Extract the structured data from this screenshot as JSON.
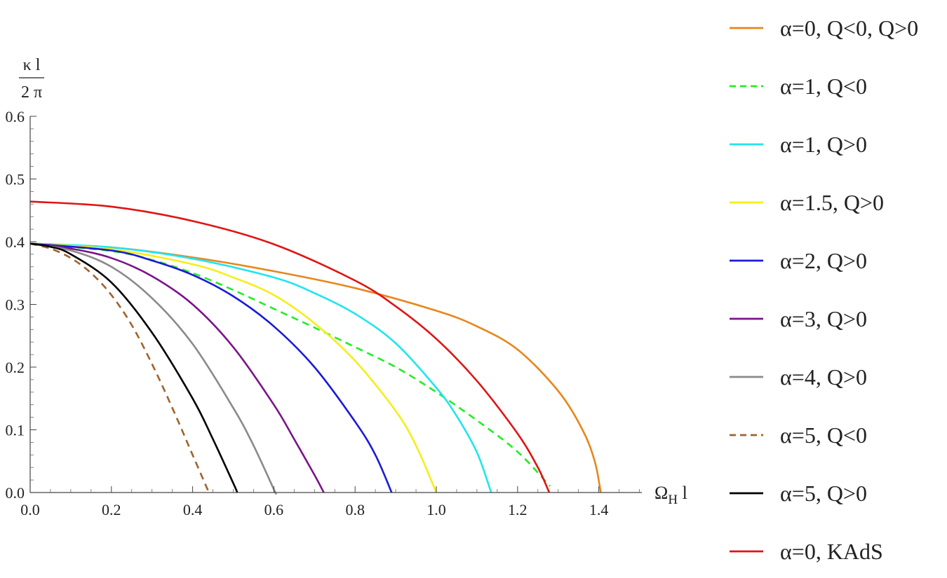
{
  "chart_data": {
    "type": "line",
    "title": "",
    "ylabel": {
      "numerator": "κ l",
      "denominator": "2 π"
    },
    "xlabel": {
      "main": "Ω",
      "subscript": "H",
      "suffix": " l"
    },
    "xlim": [
      0,
      1.5
    ],
    "ylim": [
      0,
      0.6
    ],
    "xticks": [
      "0.0",
      "0.2",
      "0.4",
      "0.6",
      "0.8",
      "1.0",
      "1.2",
      "1.4"
    ],
    "yticks": [
      "0.0",
      "0.1",
      "0.2",
      "0.3",
      "0.4",
      "0.5",
      "0.6"
    ],
    "grid": false,
    "legend_position": "right",
    "series": [
      {
        "name": "α=0, Q<0, Q>0",
        "color": "#E8861A",
        "dashed": false,
        "points": [
          [
            0,
            0.397
          ],
          [
            0.2,
            0.391
          ],
          [
            0.4,
            0.375
          ],
          [
            0.6,
            0.353
          ],
          [
            0.8,
            0.326
          ],
          [
            1.0,
            0.29
          ],
          [
            1.1,
            0.265
          ],
          [
            1.2,
            0.228
          ],
          [
            1.3,
            0.162
          ],
          [
            1.36,
            0.1
          ],
          [
            1.39,
            0.05
          ],
          [
            1.405,
            0.0
          ]
        ]
      },
      {
        "name": "α=1, Q<0",
        "color": "#22EE22",
        "dashed": true,
        "points": [
          [
            0,
            0.397
          ],
          [
            0.2,
            0.385
          ],
          [
            0.3,
            0.371
          ],
          [
            0.4,
            0.35
          ],
          [
            0.5,
            0.323
          ],
          [
            0.6,
            0.293
          ],
          [
            0.7,
            0.263
          ],
          [
            0.8,
            0.232
          ],
          [
            0.9,
            0.2
          ],
          [
            1.0,
            0.16
          ],
          [
            1.1,
            0.115
          ],
          [
            1.2,
            0.065
          ],
          [
            1.28,
            0.01
          ]
        ]
      },
      {
        "name": "α=1, Q>0",
        "color": "#22E5EE",
        "dashed": false,
        "points": [
          [
            0,
            0.397
          ],
          [
            0.2,
            0.391
          ],
          [
            0.4,
            0.373
          ],
          [
            0.6,
            0.343
          ],
          [
            0.7,
            0.318
          ],
          [
            0.8,
            0.285
          ],
          [
            0.9,
            0.238
          ],
          [
            1.0,
            0.167
          ],
          [
            1.05,
            0.122
          ],
          [
            1.1,
            0.064
          ],
          [
            1.135,
            0.0
          ]
        ]
      },
      {
        "name": "α=1.5, Q>0",
        "color": "#F5EE1A",
        "dashed": false,
        "points": [
          [
            0,
            0.397
          ],
          [
            0.2,
            0.388
          ],
          [
            0.4,
            0.364
          ],
          [
            0.5,
            0.343
          ],
          [
            0.6,
            0.315
          ],
          [
            0.7,
            0.27
          ],
          [
            0.8,
            0.21
          ],
          [
            0.9,
            0.13
          ],
          [
            0.95,
            0.075
          ],
          [
            1.0,
            0.0
          ]
        ]
      },
      {
        "name": "α=2, Q>0",
        "color": "#1A1AD9",
        "dashed": false,
        "points": [
          [
            0,
            0.397
          ],
          [
            0.2,
            0.386
          ],
          [
            0.3,
            0.37
          ],
          [
            0.4,
            0.347
          ],
          [
            0.5,
            0.313
          ],
          [
            0.6,
            0.265
          ],
          [
            0.7,
            0.2
          ],
          [
            0.8,
            0.113
          ],
          [
            0.85,
            0.06
          ],
          [
            0.89,
            0.0
          ]
        ]
      },
      {
        "name": "α=3, Q>0",
        "color": "#7A1489",
        "dashed": false,
        "points": [
          [
            0,
            0.397
          ],
          [
            0.1,
            0.389
          ],
          [
            0.2,
            0.374
          ],
          [
            0.3,
            0.345
          ],
          [
            0.4,
            0.3
          ],
          [
            0.5,
            0.232
          ],
          [
            0.6,
            0.14
          ],
          [
            0.65,
            0.085
          ],
          [
            0.7,
            0.028
          ],
          [
            0.723,
            0.0
          ]
        ]
      },
      {
        "name": "α=4, Q>0",
        "color": "#8A8A8A",
        "dashed": false,
        "points": [
          [
            0,
            0.397
          ],
          [
            0.1,
            0.386
          ],
          [
            0.2,
            0.36
          ],
          [
            0.3,
            0.31
          ],
          [
            0.4,
            0.237
          ],
          [
            0.5,
            0.135
          ],
          [
            0.55,
            0.075
          ],
          [
            0.6,
            0.005
          ],
          [
            0.604,
            0.0
          ]
        ]
      },
      {
        "name": "α=5, Q<0",
        "color": "#A0622D",
        "dashed": true,
        "points": [
          [
            0,
            0.397
          ],
          [
            0.05,
            0.389
          ],
          [
            0.1,
            0.374
          ],
          [
            0.15,
            0.35
          ],
          [
            0.2,
            0.315
          ],
          [
            0.25,
            0.267
          ],
          [
            0.3,
            0.205
          ],
          [
            0.35,
            0.135
          ],
          [
            0.4,
            0.06
          ],
          [
            0.44,
            0.0
          ]
        ]
      },
      {
        "name": "α=5, Q>0",
        "color": "#000000",
        "dashed": false,
        "points": [
          [
            0,
            0.397
          ],
          [
            0.05,
            0.392
          ],
          [
            0.1,
            0.38
          ],
          [
            0.2,
            0.335
          ],
          [
            0.3,
            0.255
          ],
          [
            0.4,
            0.15
          ],
          [
            0.45,
            0.085
          ],
          [
            0.5,
            0.015
          ],
          [
            0.51,
            0.0
          ]
        ]
      },
      {
        "name": "α=0, KAdS",
        "color": "#E01414",
        "dashed": false,
        "points": [
          [
            0,
            0.464
          ],
          [
            0.2,
            0.456
          ],
          [
            0.4,
            0.433
          ],
          [
            0.6,
            0.396
          ],
          [
            0.8,
            0.338
          ],
          [
            0.9,
            0.297
          ],
          [
            1.0,
            0.245
          ],
          [
            1.1,
            0.178
          ],
          [
            1.2,
            0.094
          ],
          [
            1.25,
            0.04
          ],
          [
            1.278,
            0.0
          ]
        ]
      }
    ]
  }
}
